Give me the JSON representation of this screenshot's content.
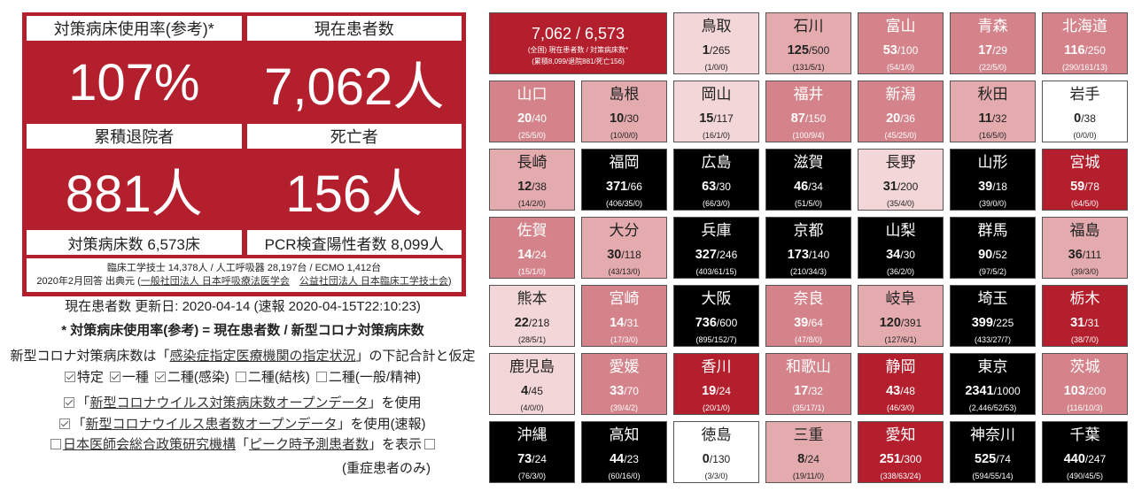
{
  "summary": {
    "usage_rate": {
      "label": "対策病床使用率(参考)*",
      "value": "107%"
    },
    "current_patients": {
      "label": "現在患者数",
      "value": "7,062人"
    },
    "discharged": {
      "label": "累積退院者",
      "value": "881人"
    },
    "deaths": {
      "label": "死亡者",
      "value": "156人"
    },
    "beds": "対策病床数 6,573床",
    "pcr_positive": "PCR検査陽性者数 8,099人",
    "equipment": "臨床工学技士 14,378人 / 人工呼吸器 28,197台 / ECMO 1,412台",
    "source": {
      "prefix": "2020年2月回答 出典元 (",
      "org1": "一般社団法人 日本呼吸療法医学会",
      "sep": "　",
      "org2": "公益社団法人 日本臨床工学技士会",
      "suffix": ")"
    }
  },
  "notes": {
    "updated": "現在患者数 更新日: 2020-04-14 (速報 2020-04-15T22:10:23)",
    "formula": "* 対策病床使用率(参考) = 現在患者数 / 新型コロナ対策病床数",
    "assumption": {
      "prefix": "新型コロナ対策病床数は「",
      "link": "感染症指定医療機関の指定状況",
      "suffix": "」の下記合計と仮定"
    },
    "bed_types": [
      {
        "label": "特定",
        "checked": true
      },
      {
        "label": "一種",
        "checked": true
      },
      {
        "label": "二種(感染)",
        "checked": true
      },
      {
        "label": "二種(結核)",
        "checked": false
      },
      {
        "label": "二種(一般/精神)",
        "checked": false
      }
    ],
    "opendata_beds": {
      "checked": true,
      "prefix": "「",
      "link": "新型コロナウイルス対策病床数オープンデータ",
      "suffix": "」を使用"
    },
    "opendata_patients": {
      "checked": true,
      "prefix": "「",
      "link": "新型コロナウイルス患者数オープンデータ",
      "suffix": "」を使用(速報)"
    },
    "peak": {
      "checked": false,
      "link_org": "日本医師会総合政策研究機構",
      "open": "「",
      "link_data": "ピーク時予測患者数",
      "close": "」を表示",
      "severe_checked": false
    },
    "severe_only": "(重症患者のみ)"
  },
  "national": {
    "value": "7,062 / 6,573",
    "caption": "(全国) 現在患者数 / 対策病床数*",
    "detail": "(累積8,099/退院881/死亡156)"
  },
  "prefectures": [
    {
      "name": "鳥取",
      "current": 1,
      "beds": 265,
      "detail": "(1/0/0)"
    },
    {
      "name": "石川",
      "current": 125,
      "beds": 500,
      "detail": "(131/5/1)"
    },
    {
      "name": "富山",
      "current": 53,
      "beds": 100,
      "detail": "(54/1/0)"
    },
    {
      "name": "青森",
      "current": 17,
      "beds": 29,
      "detail": "(22/5/0)"
    },
    {
      "name": "北海道",
      "current": 116,
      "beds": 250,
      "detail": "(290/161/13)"
    },
    {
      "name": "山口",
      "current": 20,
      "beds": 40,
      "detail": "(25/5/0)"
    },
    {
      "name": "島根",
      "current": 10,
      "beds": 30,
      "detail": "(10/0/0)"
    },
    {
      "name": "岡山",
      "current": 15,
      "beds": 117,
      "detail": "(16/1/0)"
    },
    {
      "name": "福井",
      "current": 87,
      "beds": 150,
      "detail": "(100/9/4)"
    },
    {
      "name": "新潟",
      "current": 20,
      "beds": 36,
      "detail": "(45/25/0)"
    },
    {
      "name": "秋田",
      "current": 11,
      "beds": 32,
      "detail": "(16/5/0)"
    },
    {
      "name": "岩手",
      "current": 0,
      "beds": 38,
      "detail": "(0/0/0)"
    },
    {
      "name": "長崎",
      "current": 12,
      "beds": 38,
      "detail": "(14/2/0)"
    },
    {
      "name": "福岡",
      "current": 371,
      "beds": 66,
      "detail": "(406/35/0)"
    },
    {
      "name": "広島",
      "current": 63,
      "beds": 30,
      "detail": "(66/3/0)"
    },
    {
      "name": "滋賀",
      "current": 46,
      "beds": 34,
      "detail": "(51/5/0)"
    },
    {
      "name": "長野",
      "current": 31,
      "beds": 200,
      "detail": "(35/4/0)"
    },
    {
      "name": "山形",
      "current": 39,
      "beds": 18,
      "detail": "(39/0/0)"
    },
    {
      "name": "宮城",
      "current": 59,
      "beds": 78,
      "detail": "(64/5/0)"
    },
    {
      "name": "佐賀",
      "current": 14,
      "beds": 24,
      "detail": "(15/1/0)"
    },
    {
      "name": "大分",
      "current": 30,
      "beds": 118,
      "detail": "(43/13/0)"
    },
    {
      "name": "兵庫",
      "current": 327,
      "beds": 246,
      "detail": "(403/61/15)"
    },
    {
      "name": "京都",
      "current": 173,
      "beds": 140,
      "detail": "(210/34/3)"
    },
    {
      "name": "山梨",
      "current": 34,
      "beds": 30,
      "detail": "(36/2/0)"
    },
    {
      "name": "群馬",
      "current": 90,
      "beds": 52,
      "detail": "(97/5/2)"
    },
    {
      "name": "福島",
      "current": 36,
      "beds": 111,
      "detail": "(39/3/0)"
    },
    {
      "name": "熊本",
      "current": 22,
      "beds": 218,
      "detail": "(28/5/1)"
    },
    {
      "name": "宮崎",
      "current": 14,
      "beds": 31,
      "detail": "(17/3/0)"
    },
    {
      "name": "大阪",
      "current": 736,
      "beds": 600,
      "detail": "(895/152/7)"
    },
    {
      "name": "奈良",
      "current": 39,
      "beds": 64,
      "detail": "(47/8/0)"
    },
    {
      "name": "岐阜",
      "current": 120,
      "beds": 391,
      "detail": "(127/6/1)"
    },
    {
      "name": "埼玉",
      "current": 399,
      "beds": 225,
      "detail": "(433/27/7)"
    },
    {
      "name": "栃木",
      "current": 31,
      "beds": 31,
      "detail": "(38/7/0)"
    },
    {
      "name": "鹿児島",
      "current": 4,
      "beds": 45,
      "detail": "(4/0/0)"
    },
    {
      "name": "愛媛",
      "current": 33,
      "beds": 70,
      "detail": "(39/4/2)"
    },
    {
      "name": "香川",
      "current": 19,
      "beds": 24,
      "detail": "(20/1/0)"
    },
    {
      "name": "和歌山",
      "current": 17,
      "beds": 32,
      "detail": "(35/17/1)"
    },
    {
      "name": "静岡",
      "current": 43,
      "beds": 48,
      "detail": "(46/3/0)"
    },
    {
      "name": "東京",
      "current": 2341,
      "beds": 1000,
      "detail": "(2,446/52/53)"
    },
    {
      "name": "茨城",
      "current": 103,
      "beds": 200,
      "detail": "(116/10/3)"
    },
    {
      "name": "沖縄",
      "current": 73,
      "beds": 24,
      "detail": "(76/3/0)"
    },
    {
      "name": "高知",
      "current": 44,
      "beds": 23,
      "detail": "(60/16/0)"
    },
    {
      "name": "徳島",
      "current": 0,
      "beds": 130,
      "detail": "(3/3/0)"
    },
    {
      "name": "三重",
      "current": 8,
      "beds": 24,
      "detail": "(19/11/0)"
    },
    {
      "name": "愛知",
      "current": 251,
      "beds": 300,
      "detail": "(338/63/24)"
    },
    {
      "name": "神奈川",
      "current": 525,
      "beds": 74,
      "detail": "(594/55/14)"
    },
    {
      "name": "千葉",
      "current": 440,
      "beds": 247,
      "detail": "(490/45/5)"
    }
  ],
  "colors": {
    "summary_bg": "#b41f2d",
    "tile_zero": "#ffffff",
    "tile_low": "#f3d6d7",
    "tile_mid_low": "#e4abae",
    "tile_mid": "#d4838a",
    "tile_high": "#b41f2d",
    "tile_over": "#000000",
    "text_dark": "#222222",
    "text_light": "#ffffff"
  }
}
